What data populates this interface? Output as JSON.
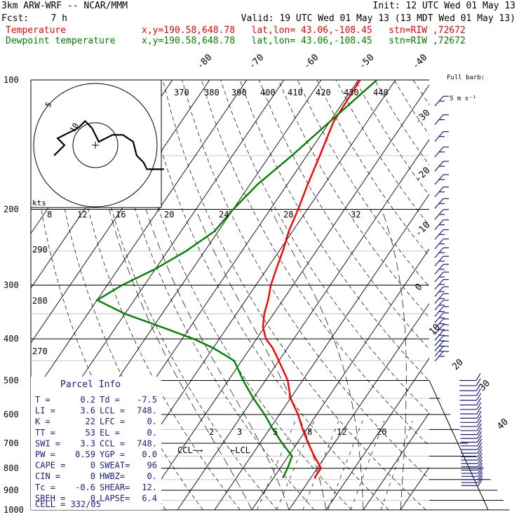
{
  "header": {
    "model": "3km ARW-WRF -- NCAR/MMM",
    "init": "Init: 12 UTC Wed 01 May 13",
    "fcst": "Fcst:    7 h",
    "valid": "Valid: 19 UTC Wed 01 May 13 (13 MDT Wed 01 May 13)",
    "temp_label": "Temperature",
    "temp_loc": "x,y=190.58,648.78   lat,lon= 43.06,-108.45   stn=RIW ,72672",
    "dew_label": "Dewpoint temperature",
    "dew_loc": "x,y=190.58,648.78   lat,lon= 43.06,-108.45   stn=RIW ,72672"
  },
  "colors": {
    "temperature": "#ff0000",
    "dewpoint": "#008000",
    "wind_barbs": "#1c1c8a",
    "axes": "#000000"
  },
  "barb_key": {
    "line1": "Full barb:",
    "line2": "5 m s⁻¹"
  },
  "hodograph": {
    "units": "kts",
    "ring_labels": [
      "5",
      "10"
    ]
  },
  "parcel": {
    "title": "Parcel Info",
    "rows": [
      {
        "l1": "T  =",
        "v1": "0.2",
        "l2": "Td =",
        "v2": "-7.5"
      },
      {
        "l1": "LI =",
        "v1": "3.6",
        "l2": "LCL =",
        "v2": "748."
      },
      {
        "l1": "K  =",
        "v1": "22",
        "l2": "LFC =",
        "v2": "0."
      },
      {
        "l1": "TT =",
        "v1": "53",
        "l2": "EL  =",
        "v2": "0."
      },
      {
        "l1": "SWI =",
        "v1": "3.3",
        "l2": "CCL =",
        "v2": "748."
      },
      {
        "l1": "PW =",
        "v1": "0.59",
        "l2": "YGP =",
        "v2": "0.0"
      },
      {
        "l1": "CAPE =",
        "v1": "0",
        "l2": "SWEAT=",
        "v2": "96"
      },
      {
        "l1": "CIN =",
        "v1": "0",
        "l2": "HWBZ=",
        "v2": "0."
      },
      {
        "l1": "Tc =",
        "v1": "-0.6",
        "l2": "SHEAR=",
        "v2": "12."
      },
      {
        "l1": "SREH =",
        "v1": "0",
        "l2": "LAPSE=",
        "v2": "6.4"
      }
    ],
    "cell": "CELL = 332/05"
  },
  "chart_data": {
    "type": "line",
    "title": "3km ARW-WRF -- NCAR/MMM",
    "xlabel": "",
    "ylabel": "",
    "y_scale": "log-pressure (hPa), inverted",
    "ylim": [
      1000,
      100
    ],
    "pressure_ticks": [
      "100",
      "200",
      "300",
      "400",
      "500",
      "600",
      "700",
      "800",
      "900",
      "1000"
    ],
    "isotherm_labels": [
      "-80",
      "-70",
      "-60",
      "-50",
      "-40",
      "-30",
      "-20",
      "-10",
      "0",
      "10",
      "20",
      "30",
      "40"
    ],
    "dry_adiabat_labels": [
      "370",
      "380",
      "390",
      "400",
      "410",
      "420",
      "430",
      "440",
      "290",
      "280",
      "270"
    ],
    "mixing_ratio_labels": [
      "2",
      "3",
      "5",
      "8",
      "12",
      "20"
    ],
    "hodo_axis_labels": [
      "8",
      "12",
      "16",
      "20",
      "24",
      "28",
      "32"
    ],
    "annotations": [
      "CCL",
      "LCL"
    ],
    "series": [
      {
        "name": "Temperature",
        "p": [
          843,
          800,
          750,
          700,
          650,
          600,
          550,
          500,
          450,
          420,
          400,
          375,
          350,
          325,
          300,
          275,
          250,
          225,
          200,
          175,
          150,
          125,
          100
        ],
        "t": [
          1,
          1,
          -3,
          -7,
          -11,
          -15,
          -20,
          -24,
          -30,
          -34,
          -37.5,
          -40.5,
          -42.5,
          -44,
          -46,
          -47.5,
          -49,
          -51,
          -52.5,
          -54.5,
          -56.5,
          -59,
          -59.5
        ]
      },
      {
        "name": "Dewpoint temperature",
        "p": [
          843,
          800,
          750,
          700,
          650,
          600,
          550,
          500,
          450,
          420,
          400,
          375,
          350,
          325,
          300,
          275,
          250,
          225,
          200,
          175,
          150,
          125,
          100
        ],
        "t": [
          -7.5,
          -8,
          -9,
          -14,
          -19,
          -24,
          -30,
          -36,
          -42,
          -50,
          -57,
          -68,
          -80,
          -90,
          -86,
          -80,
          -75,
          -71,
          -70,
          -68,
          -64,
          -60,
          -55
        ]
      }
    ],
    "hodograph_trace_kts": {
      "u": [
        -12,
        -9,
        -11,
        -5,
        -3,
        -1,
        0,
        1,
        5,
        8,
        11,
        12,
        14,
        15,
        20
      ],
      "v": [
        -3,
        0,
        2,
        5,
        7,
        5,
        3,
        1,
        3,
        3,
        1,
        -3,
        -5,
        -7,
        -7
      ]
    },
    "wind_barbs": [
      {
        "p": 120,
        "dir": 250,
        "spd": 25
      },
      {
        "p": 200,
        "dir": 250,
        "spd": 25
      },
      {
        "p": 300,
        "dir": 255,
        "spd": 20
      },
      {
        "p": 400,
        "dir": 260,
        "spd": 15
      },
      {
        "p": 500,
        "dir": 270,
        "spd": 8
      },
      {
        "p": 600,
        "dir": 300,
        "spd": 5
      },
      {
        "p": 700,
        "dir": 330,
        "spd": 10
      },
      {
        "p": 800,
        "dir": 340,
        "spd": 15
      }
    ]
  }
}
